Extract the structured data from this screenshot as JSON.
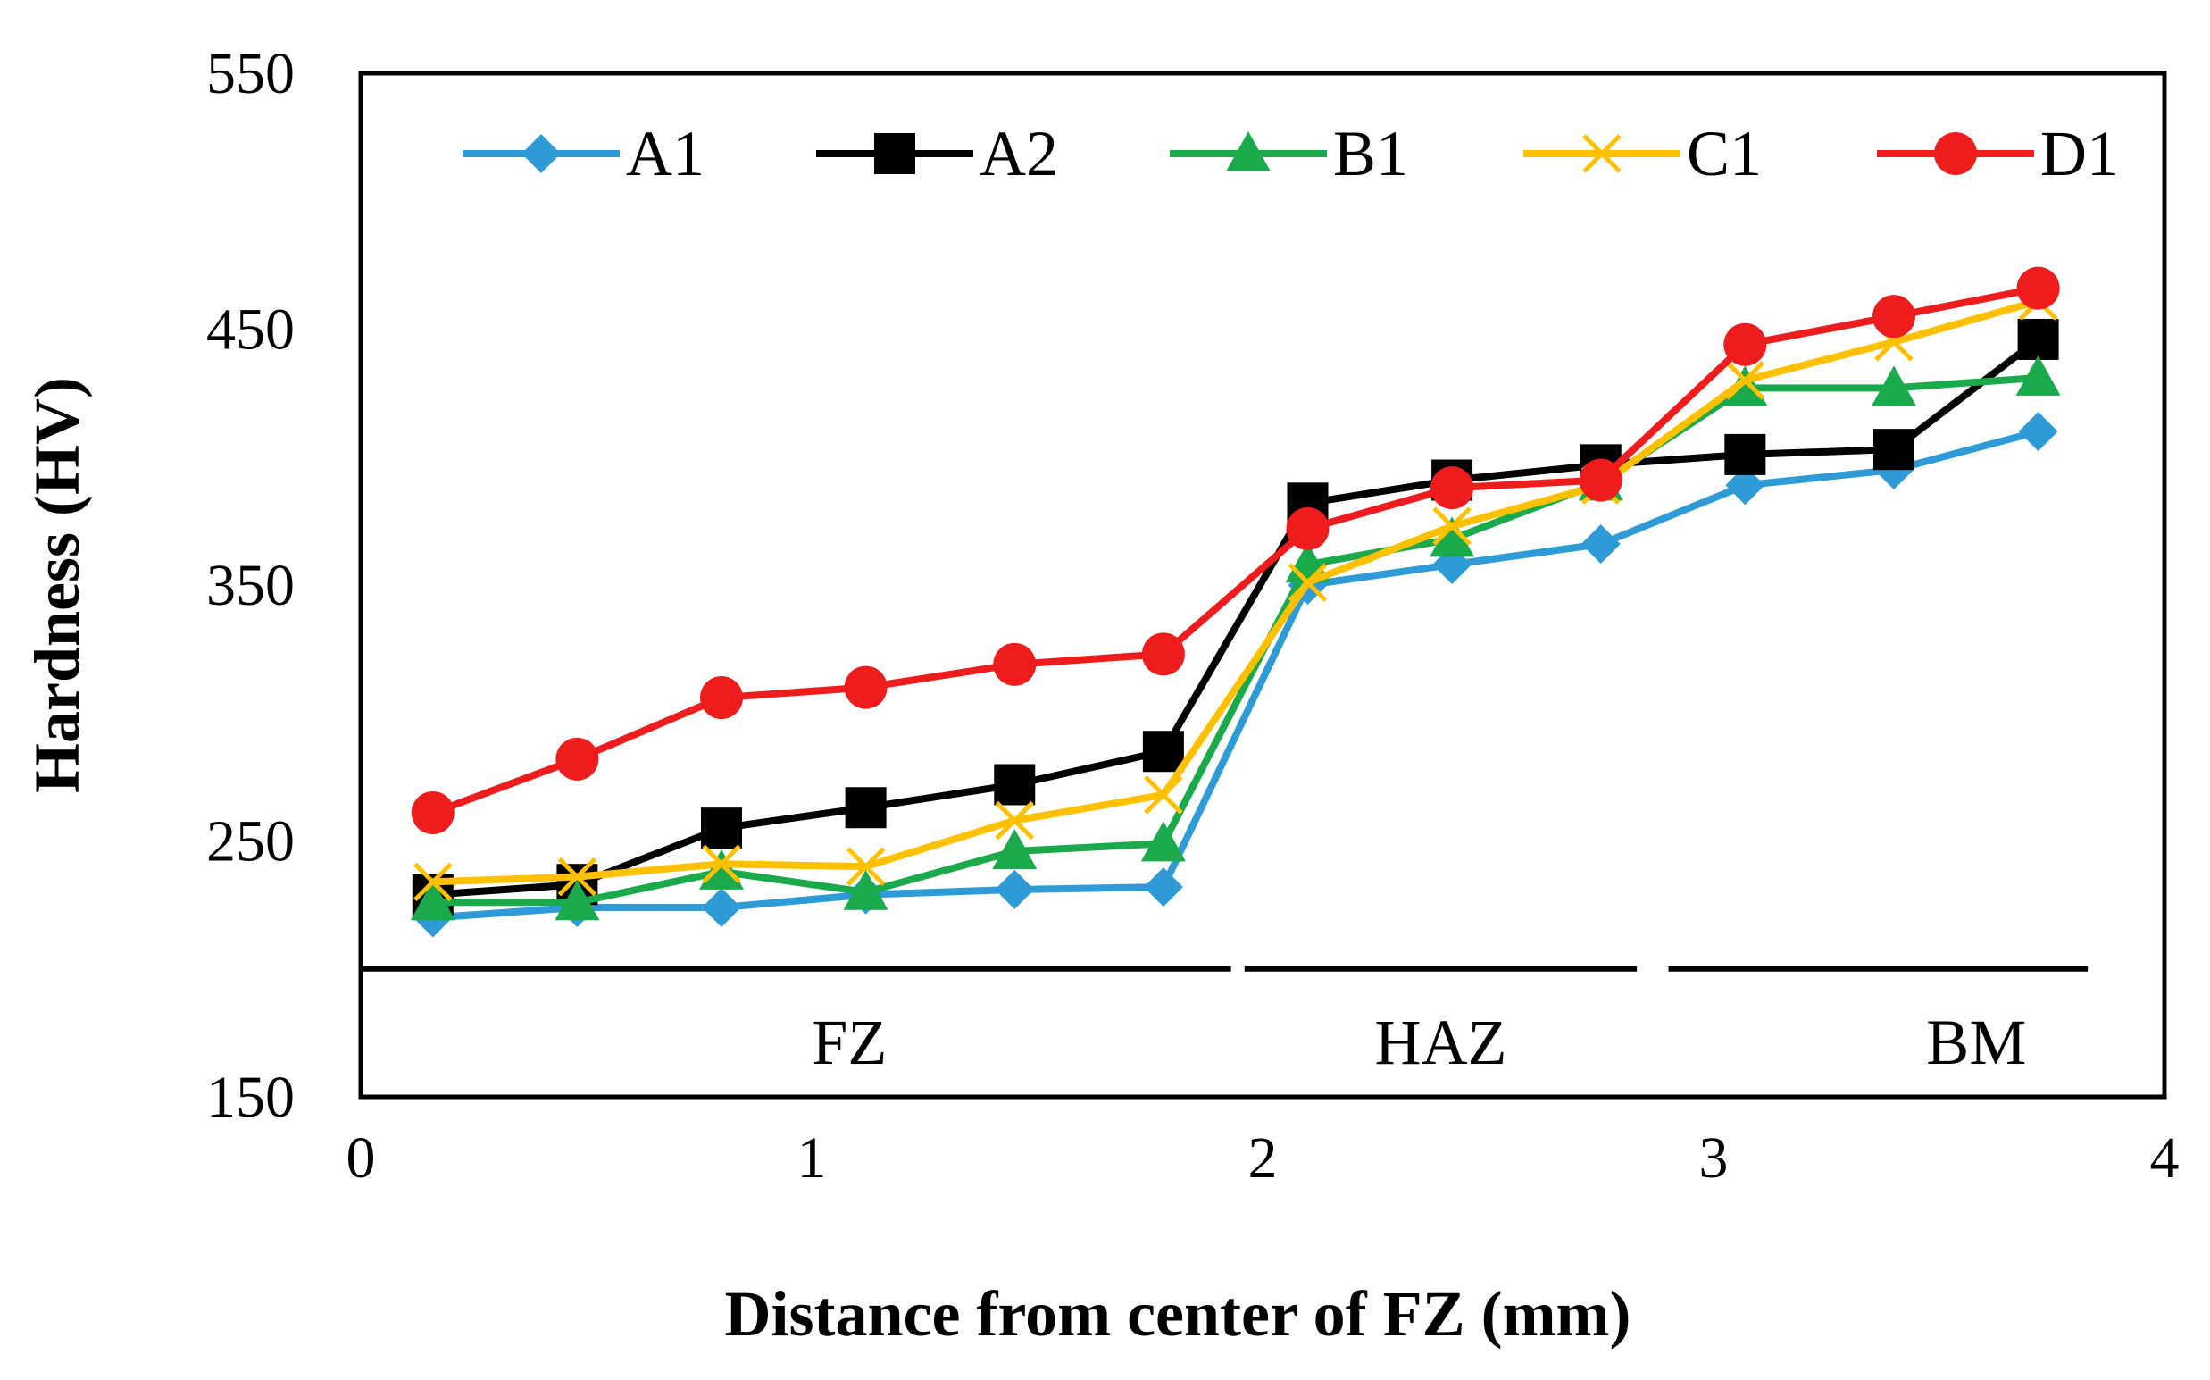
{
  "chart_data": {
    "type": "line",
    "title": "",
    "xlabel": "Distance from center of FZ (mm)",
    "ylabel": "Hardness (HV)",
    "xlim": [
      0,
      4
    ],
    "ylim": [
      150,
      550
    ],
    "xticks": [
      0,
      1,
      2,
      3,
      4
    ],
    "yticks": [
      150,
      250,
      350,
      450,
      550
    ],
    "xtick_labels": [
      "0",
      "1",
      "2",
      "3",
      "4"
    ],
    "ytick_labels": [
      "150",
      "250",
      "350",
      "450",
      "550"
    ],
    "grid": false,
    "legend_position": "top",
    "x": [
      0.16,
      0.48,
      0.8,
      1.12,
      1.45,
      1.78,
      2.1,
      2.42,
      2.75,
      3.07,
      3.4,
      3.72
    ],
    "series": [
      {
        "name": "A1",
        "color": "#2E9BD6",
        "marker": "diamond",
        "values": [
          220,
          224,
          224,
          229,
          231,
          232,
          350,
          358,
          366,
          389,
          395,
          410
        ]
      },
      {
        "name": "A2",
        "color": "#000000",
        "marker": "square",
        "values": [
          229,
          233,
          255,
          263,
          272,
          285,
          382,
          391,
          397,
          401,
          403,
          446
        ]
      },
      {
        "name": "B1",
        "color": "#1BAA4B",
        "marker": "triangle",
        "values": [
          226,
          226,
          238,
          230,
          246,
          249,
          358,
          368,
          390,
          427,
          427,
          431
        ]
      },
      {
        "name": "C1",
        "color": "#FFC000",
        "marker": "x",
        "values": [
          234,
          236,
          241,
          240,
          258,
          268,
          351,
          373,
          389,
          430,
          445,
          461
        ]
      },
      {
        "name": "D1",
        "color": "#EE1C1C",
        "marker": "circle",
        "values": [
          261,
          282,
          306,
          310,
          319,
          323,
          372,
          388,
          391,
          444,
          455,
          466
        ]
      }
    ],
    "zones": [
      {
        "label": "FZ",
        "x_start": 0,
        "x_end": 1.93
      },
      {
        "label": "HAZ",
        "x_start": 1.96,
        "x_end": 2.83
      },
      {
        "label": "BM",
        "x_start": 2.9,
        "x_end": 3.83
      }
    ],
    "zone_line_y": 200
  }
}
